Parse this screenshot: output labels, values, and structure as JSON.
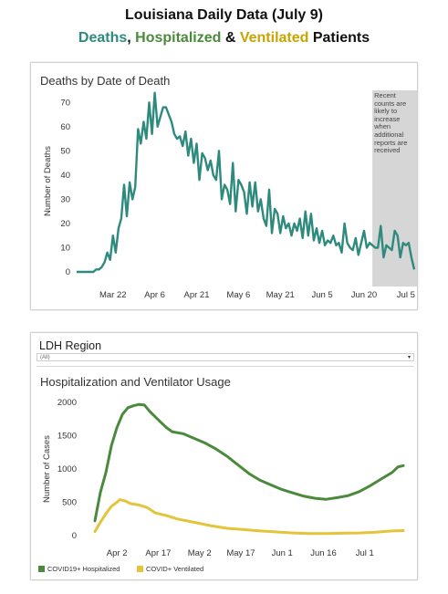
{
  "header": {
    "line1": "Louisiana Daily Data (July 9)",
    "line2_parts": {
      "deaths": "Deaths",
      "comma": ", ",
      "hospitalized": "Hospitalized",
      "amp": " & ",
      "ventilated": "Ventilated",
      "patients": " Patients"
    }
  },
  "colors": {
    "deaths": "#2f8a7e",
    "hospitalized": "#4b8a3c",
    "ventilated": "#e3c43a",
    "note_shade": "#c8c8c8"
  },
  "region": {
    "label": "LDH Region",
    "selected": "(All)"
  },
  "chart_data": [
    {
      "type": "line",
      "title": "Deaths by Date of Death",
      "ylabel": "Number of Deaths",
      "ylim": [
        0,
        75
      ],
      "yticks": [
        0,
        10,
        20,
        30,
        40,
        50,
        60,
        70
      ],
      "x_start": "Mar 9",
      "xticks": [
        {
          "label": "Mar 22",
          "day": 13
        },
        {
          "label": "Apr 6",
          "day": 28
        },
        {
          "label": "Apr 21",
          "day": 43
        },
        {
          "label": "May 6",
          "day": 58
        },
        {
          "label": "May 21",
          "day": 73
        },
        {
          "label": "Jun 5",
          "day": 88
        },
        {
          "label": "Jun 20",
          "day": 103
        },
        {
          "label": "Jul 5",
          "day": 118
        }
      ],
      "shade_from_day": 106,
      "annotation": "Recent counts are likely to increase when additional reports are received",
      "series": [
        {
          "values": [
            0,
            0,
            0,
            0,
            0,
            0,
            0,
            1,
            1,
            2,
            4,
            8,
            5,
            15,
            8,
            18,
            22,
            36,
            23,
            37,
            30,
            35,
            59,
            53,
            62,
            55,
            70,
            57,
            74,
            60,
            64,
            68,
            68,
            65,
            62,
            57,
            55,
            56,
            52,
            58,
            48,
            55,
            45,
            53,
            38,
            49,
            47,
            42,
            46,
            40,
            38,
            50,
            30,
            36,
            34,
            28,
            45,
            25,
            38,
            36,
            33,
            24,
            37,
            27,
            37,
            25,
            30,
            22,
            19,
            34,
            16,
            26,
            24,
            16,
            23,
            18,
            20,
            15,
            20,
            17,
            22,
            14,
            25,
            15,
            24,
            13,
            18,
            12,
            17,
            11,
            13,
            12,
            15,
            11,
            12,
            8,
            20,
            12,
            10,
            9,
            14,
            7,
            12,
            17,
            10,
            12,
            11,
            10,
            10,
            19,
            6,
            11,
            10,
            9,
            17,
            15,
            6,
            12,
            11,
            12,
            6,
            1
          ]
        }
      ]
    },
    {
      "type": "line",
      "title": "Hospitalization and Ventilator Usage",
      "ylabel": "Number of Cases",
      "ylim": [
        0,
        2000
      ],
      "yticks": [
        0,
        500,
        1000,
        1500,
        2000
      ],
      "x_start": "Mar 25",
      "xticks": [
        {
          "label": "Apr 2",
          "day": 8
        },
        {
          "label": "Apr 17",
          "day": 23
        },
        {
          "label": "May 2",
          "day": 38
        },
        {
          "label": "May 17",
          "day": 53
        },
        {
          "label": "Jun 1",
          "day": 68
        },
        {
          "label": "Jun 16",
          "day": 83
        },
        {
          "label": "Jul 1",
          "day": 98
        }
      ],
      "series": [
        {
          "name": "COVID19+ Hospitalized",
          "points": [
            [
              0,
              220
            ],
            [
              2,
              650
            ],
            [
              4,
              950
            ],
            [
              6,
              1350
            ],
            [
              8,
              1620
            ],
            [
              10,
              1820
            ],
            [
              12,
              1920
            ],
            [
              14,
              1950
            ],
            [
              16,
              1970
            ],
            [
              18,
              1960
            ],
            [
              20,
              1860
            ],
            [
              22,
              1780
            ],
            [
              24,
              1700
            ],
            [
              26,
              1620
            ],
            [
              28,
              1560
            ],
            [
              32,
              1530
            ],
            [
              36,
              1460
            ],
            [
              40,
              1390
            ],
            [
              44,
              1300
            ],
            [
              48,
              1190
            ],
            [
              52,
              1060
            ],
            [
              56,
              930
            ],
            [
              60,
              830
            ],
            [
              64,
              760
            ],
            [
              68,
              690
            ],
            [
              72,
              640
            ],
            [
              76,
              590
            ],
            [
              80,
              560
            ],
            [
              84,
              545
            ],
            [
              88,
              570
            ],
            [
              92,
              600
            ],
            [
              96,
              660
            ],
            [
              100,
              750
            ],
            [
              104,
              850
            ],
            [
              108,
              950
            ],
            [
              110,
              1030
            ],
            [
              112,
              1050
            ]
          ]
        },
        {
          "name": "COVID+ Ventilated",
          "points": [
            [
              0,
              60
            ],
            [
              2,
              200
            ],
            [
              4,
              330
            ],
            [
              6,
              440
            ],
            [
              8,
              500
            ],
            [
              9,
              540
            ],
            [
              11,
              520
            ],
            [
              13,
              480
            ],
            [
              16,
              460
            ],
            [
              19,
              420
            ],
            [
              22,
              340
            ],
            [
              26,
              300
            ],
            [
              30,
              250
            ],
            [
              36,
              200
            ],
            [
              42,
              150
            ],
            [
              48,
              110
            ],
            [
              54,
              90
            ],
            [
              60,
              70
            ],
            [
              66,
              55
            ],
            [
              72,
              40
            ],
            [
              78,
              30
            ],
            [
              84,
              30
            ],
            [
              90,
              35
            ],
            [
              96,
              40
            ],
            [
              102,
              50
            ],
            [
              108,
              70
            ],
            [
              112,
              75
            ]
          ]
        }
      ]
    }
  ]
}
